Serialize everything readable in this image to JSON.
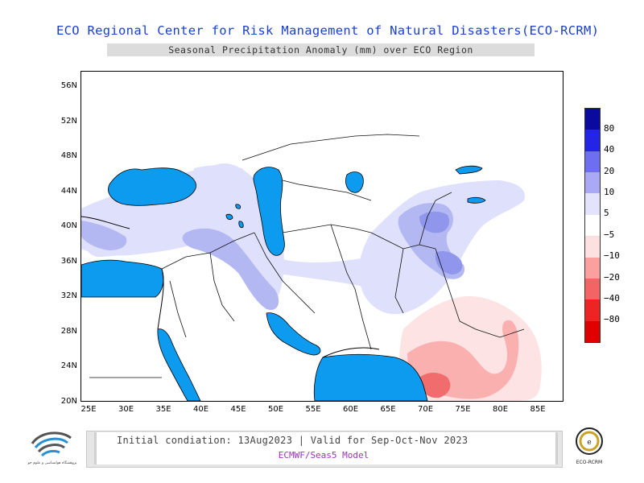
{
  "title": "ECO Regional Center for Risk Management of Natural Disasters(ECO-RCRM)",
  "subtitle": "Seasonal Precipitation Anomaly (mm) over ECO Region",
  "map": {
    "lat_labels": [
      "56N",
      "52N",
      "48N",
      "44N",
      "40N",
      "36N",
      "32N",
      "28N",
      "24N",
      "20N"
    ],
    "lon_labels": [
      "25E",
      "30E",
      "35E",
      "40E",
      "45E",
      "50E",
      "55E",
      "60E",
      "65E",
      "70E",
      "75E",
      "80E",
      "85E"
    ],
    "colors": {
      "water": "#0d9bef",
      "wet_light": "#dfe0fb",
      "wet_mid": "#b4b8f2",
      "wet_strong": "#8f96ec",
      "dry_light": "#fde3e3",
      "dry_mid": "#fbb0b0",
      "dry_strong": "#f16c6c"
    }
  },
  "legend": {
    "labels": [
      "80",
      "40",
      "20",
      "10",
      "5",
      "−5",
      "−10",
      "−20",
      "−40",
      "−80"
    ],
    "colors": [
      "#0a0aa0",
      "#2424e6",
      "#6e6ef0",
      "#a9a9f6",
      "#e3e3fb",
      "#ffffff",
      "#fde1e1",
      "#fb9f9f",
      "#f56464",
      "#ee2424",
      "#e00000"
    ]
  },
  "footer": {
    "line1": "Initial condiation: 13Aug2023 | Valid for Sep-Oct-Nov 2023",
    "line2": "ECMWF/Seas5 Model"
  },
  "logos": {
    "left_icon": "research-institute-logo",
    "left_caption": "پژوهشگاه هواشناسی و علوم جو",
    "right_icon": "eco-rcrm-logo",
    "right_caption": "ECO-RCRM"
  }
}
